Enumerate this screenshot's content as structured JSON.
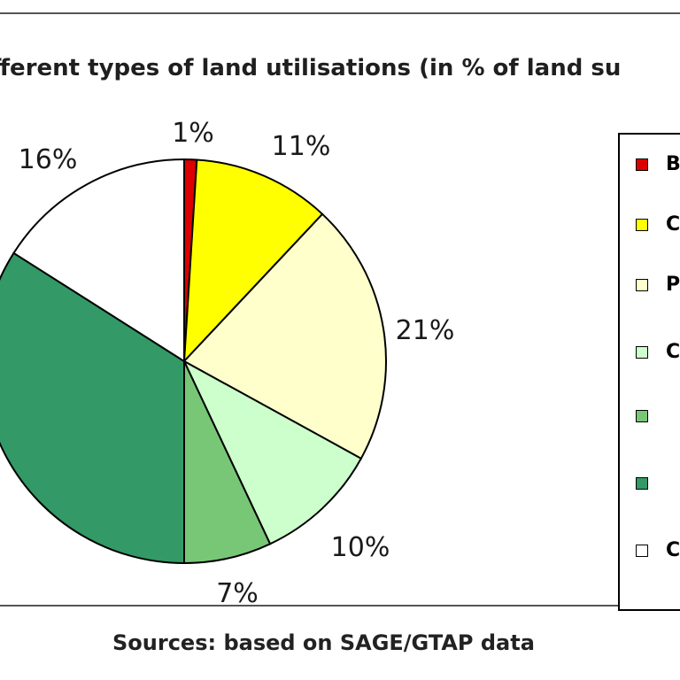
{
  "chart_data": {
    "type": "pie",
    "title": "fferent types of land utilisations (in % of land su",
    "slices": [
      {
        "label": "B",
        "value": 1,
        "display": "1%",
        "color": "#dd0000"
      },
      {
        "label": "C",
        "value": 11,
        "display": "11%",
        "color": "#ffff00"
      },
      {
        "label": "P",
        "value": 21,
        "display": "21%",
        "color": "#ffffcc"
      },
      {
        "label": "C",
        "value": 10,
        "display": "10%",
        "color": "#ccffcc"
      },
      {
        "label": "",
        "value": 7,
        "display": "7%",
        "color": "#77c777"
      },
      {
        "label": "",
        "value": 34,
        "display": "",
        "color": "#339966"
      },
      {
        "label": "C",
        "value": 16,
        "display": "16%",
        "color": "#ffffff"
      }
    ],
    "legend_position": "right"
  },
  "source": "Sources: based on SAGE/GTAP data"
}
